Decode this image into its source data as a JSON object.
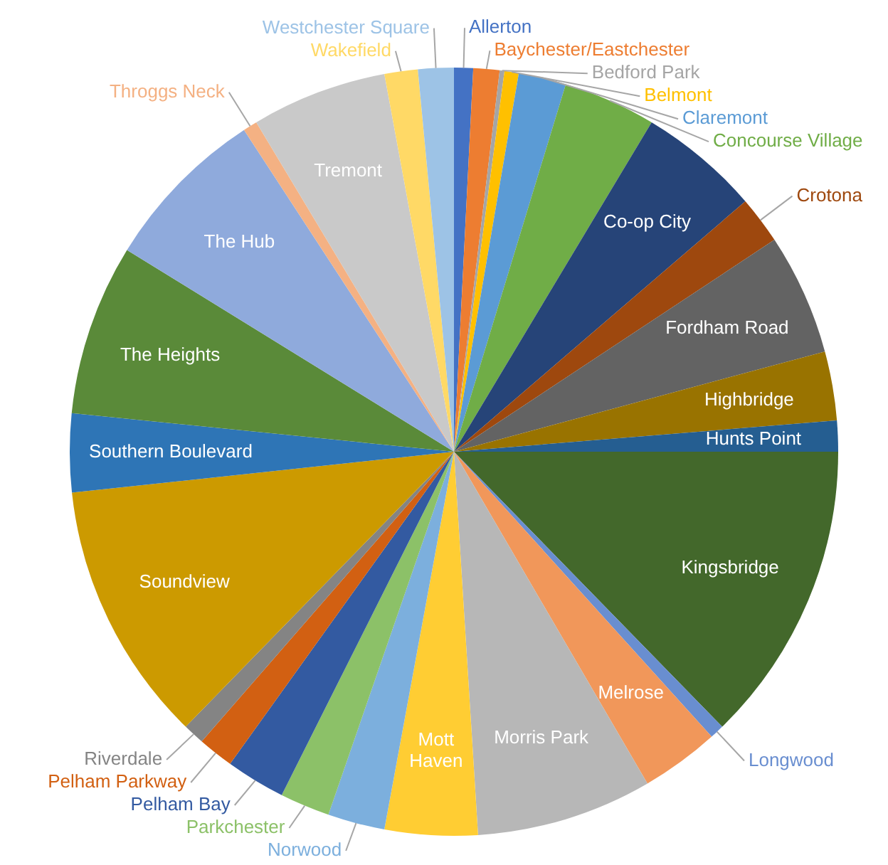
{
  "chart_data": {
    "type": "pie",
    "categories": [
      "Allerton",
      "Baychester/Eastchester",
      "Bedford Park",
      "Belmont",
      "Claremont",
      "Concourse Village",
      "Co-op City",
      "Crotona",
      "Fordham Road",
      "Highbridge",
      "Hunts Point",
      "Kingsbridge",
      "Longwood",
      "Melrose",
      "Morris Park",
      "Mott Haven",
      "Norwood",
      "Parkchester",
      "Pelham Bay",
      "Pelham Parkway",
      "Riverdale",
      "Soundview",
      "Southern Boulevard",
      "The Heights",
      "The Hub",
      "Throggs Neck",
      "Tremont",
      "Wakefield",
      "Westchester Square"
    ],
    "values": [
      0.8,
      1.1,
      0.2,
      0.6,
      2.0,
      3.9,
      5.1,
      2.0,
      5.1,
      2.9,
      1.3,
      12.7,
      0.6,
      3.3,
      7.4,
      3.9,
      2.4,
      2.1,
      2.5,
      1.5,
      0.9,
      11.0,
      3.3,
      7.2,
      7.0,
      0.6,
      5.7,
      1.4,
      1.5
    ],
    "colors": [
      "#4472c4",
      "#ed7d31",
      "#a5a5a5",
      "#ffc000",
      "#5b9bd5",
      "#70ad47",
      "#264478",
      "#9e480e",
      "#636363",
      "#997300",
      "#255e91",
      "#43682b",
      "#698ed0",
      "#f1975a",
      "#b7b7b7",
      "#ffcd33",
      "#7cafdd",
      "#8cc168",
      "#335aa1",
      "#d26012",
      "#848484",
      "#cc9a00",
      "#2e75b6",
      "#5a8a39",
      "#8faadc",
      "#f4b183",
      "#c9c9c9",
      "#ffd966",
      "#9dc3e6"
    ]
  }
}
